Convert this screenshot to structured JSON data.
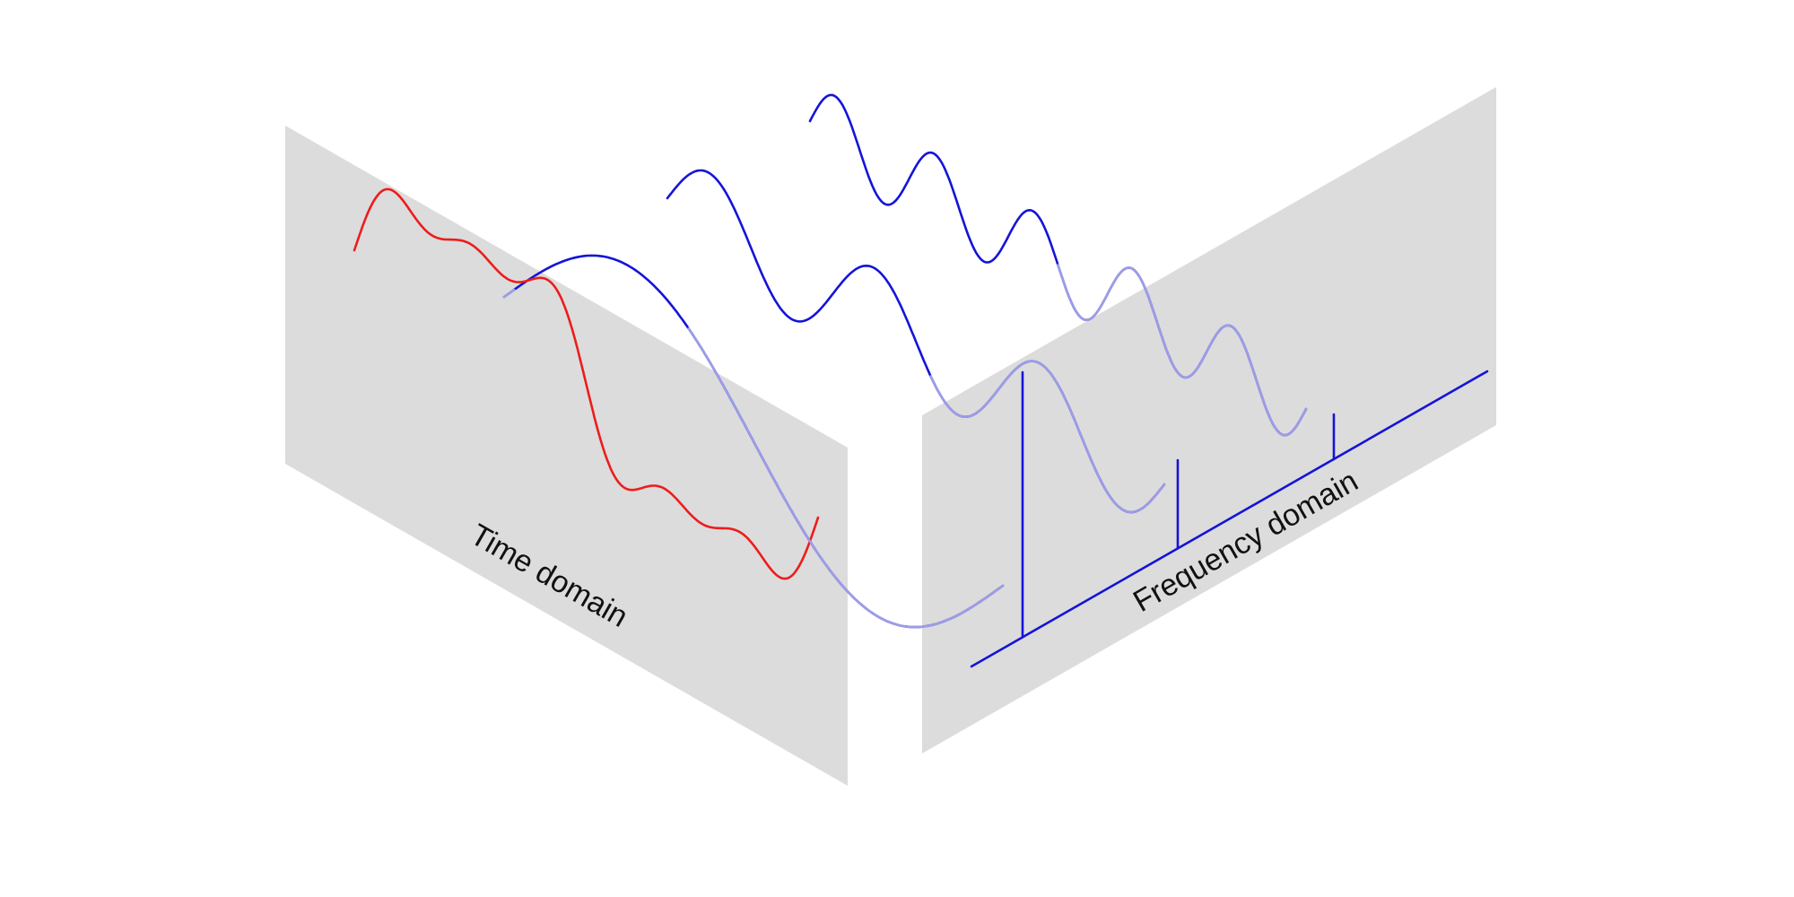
{
  "labels": {
    "time_domain": "Time domain",
    "frequency_domain": "Frequency domain"
  },
  "colors": {
    "plane": "#dcdcdc",
    "component_wave": "#1414d8",
    "component_wave_faded": "#9d9de6",
    "sum_signal": "#ee1c1c",
    "spectrum": "#1414d8"
  },
  "signal": {
    "component_count": 3,
    "relative_amplitudes": [
      1.0,
      0.35,
      0.2
    ],
    "relative_frequencies": [
      1,
      3,
      5
    ]
  }
}
